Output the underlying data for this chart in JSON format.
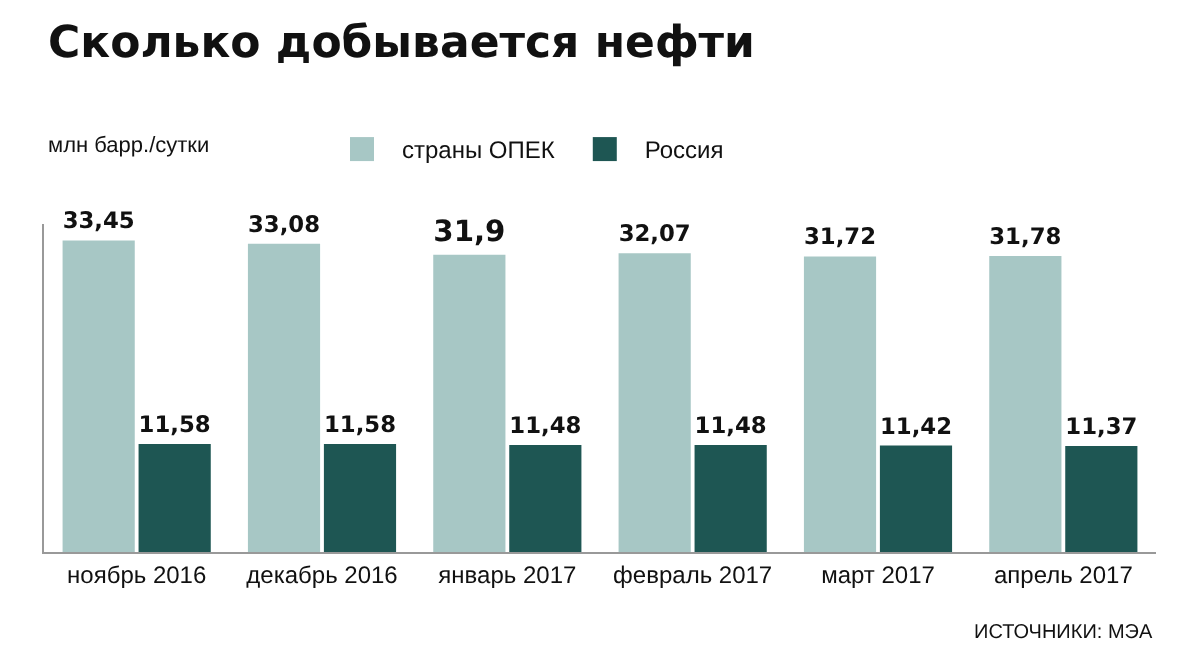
{
  "chart_data": {
    "type": "bar",
    "title": "Сколько добывается нефти",
    "ylabel": "млн барр./сутки",
    "categories": [
      "ноябрь 2016",
      "декабрь 2016",
      "январь 2017",
      "февраль 2017",
      "март 2017",
      "апрель 2017"
    ],
    "series": [
      {
        "name": "страны ОПЕК",
        "color": "#a7c7c5",
        "values": [
          33.45,
          33.08,
          31.9,
          32.07,
          31.72,
          31.78
        ],
        "value_labels": [
          "33,45",
          "33,08",
          "31,9",
          "32,07",
          "31,72",
          "31,78"
        ]
      },
      {
        "name": "Россия",
        "color": "#1e5653",
        "values": [
          11.58,
          11.58,
          11.48,
          11.48,
          11.42,
          11.37
        ],
        "value_labels": [
          "11,58",
          "11,58",
          "11,48",
          "11,48",
          "11,42",
          "11,37"
        ]
      }
    ],
    "grid": false,
    "legend": "top",
    "annotations": [
      "ИСТОЧНИКИ: МЭА"
    ]
  }
}
